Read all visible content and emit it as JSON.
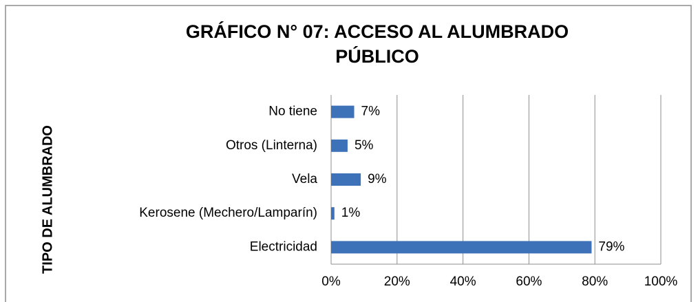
{
  "chart_data": {
    "type": "bar",
    "orientation": "horizontal",
    "title": [
      "GRÁFICO N° 07: ACCESO AL ALUMBRADO",
      "PÚBLICO"
    ],
    "y_label": "TIPO DE ALUMBRADO",
    "categories": [
      "No tiene",
      "Otros (Linterna)",
      "Vela",
      "Kerosene (Mechero/Lamparín)",
      "Electricidad"
    ],
    "values": [
      7,
      5,
      9,
      1,
      79
    ],
    "value_labels": [
      "7%",
      "5%",
      "9%",
      "1%",
      "79%"
    ],
    "color": "#3d72b8",
    "xlim": [
      0,
      100
    ],
    "xticks": [
      {
        "value": 0,
        "label": "0%"
      },
      {
        "value": 20,
        "label": "20%"
      },
      {
        "value": 40,
        "label": "40%"
      },
      {
        "value": 60,
        "label": "60%"
      },
      {
        "value": 80,
        "label": "80%"
      },
      {
        "value": 100,
        "label": "100%"
      }
    ],
    "grid": true
  }
}
